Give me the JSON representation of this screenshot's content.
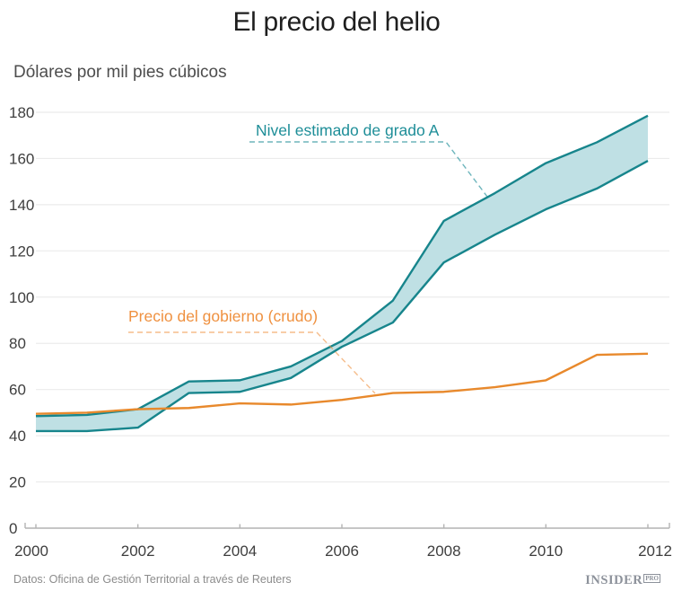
{
  "title": "El precio del helio",
  "subtitle": "Dólares por mil pies cúbicos",
  "source": "Datos: Oficina de Gestión Territorial a través de Reuters",
  "brand": {
    "name": "INSIDER",
    "suffix": "PRO"
  },
  "colors": {
    "background": "#ffffff",
    "title": "#1e1e1e",
    "subtitle": "#4d4d4d",
    "grid": "#ebebeb",
    "axis": "#b3b3b3",
    "tick_text": "#3e3e3e",
    "footer": "#8c8c8c",
    "logo": "#8d929b"
  },
  "chart_data": {
    "type": "area",
    "title": "El precio del helio",
    "ylabel": "Dólares por mil pies cúbicos",
    "x": [
      2000,
      2001,
      2002,
      2003,
      2004,
      2005,
      2006,
      2007,
      2008,
      2009,
      2010,
      2011,
      2012
    ],
    "series": [
      {
        "name": "Nivel estimado de grado A",
        "type": "band",
        "color": "#17858c",
        "fill": "#bfe0e4",
        "lower": [
          42,
          42,
          43.5,
          58.5,
          59,
          65,
          78.5,
          89,
          115,
          127,
          138,
          147,
          159
        ],
        "upper": [
          48.5,
          49,
          51.5,
          63.5,
          64,
          70,
          81,
          98.5,
          133,
          145,
          158,
          167,
          178.5
        ]
      },
      {
        "name": "Precio del gobierno (crudo)",
        "type": "line",
        "color": "#e8892c",
        "values": [
          49.5,
          50,
          51.5,
          52,
          54,
          53.5,
          55.5,
          58.5,
          59,
          61,
          64,
          75,
          75.5
        ]
      }
    ],
    "xticks": [
      2000,
      2002,
      2004,
      2006,
      2008,
      2010,
      2012
    ],
    "yticks": [
      0,
      20,
      40,
      60,
      80,
      100,
      120,
      140,
      160,
      180
    ],
    "xlim": [
      2000,
      2012
    ],
    "ylim": [
      0,
      180
    ],
    "grid": "horizontal-only",
    "legend": "inline-annotations",
    "annotations": [
      {
        "text": "Nivel estimado de grado A",
        "color": "#1e8e98",
        "series": "Nivel estimado de grado A"
      },
      {
        "text": "Precio del gobierno (crudo)",
        "color": "#ef9140",
        "series": "Precio del gobierno (crudo)"
      }
    ]
  }
}
